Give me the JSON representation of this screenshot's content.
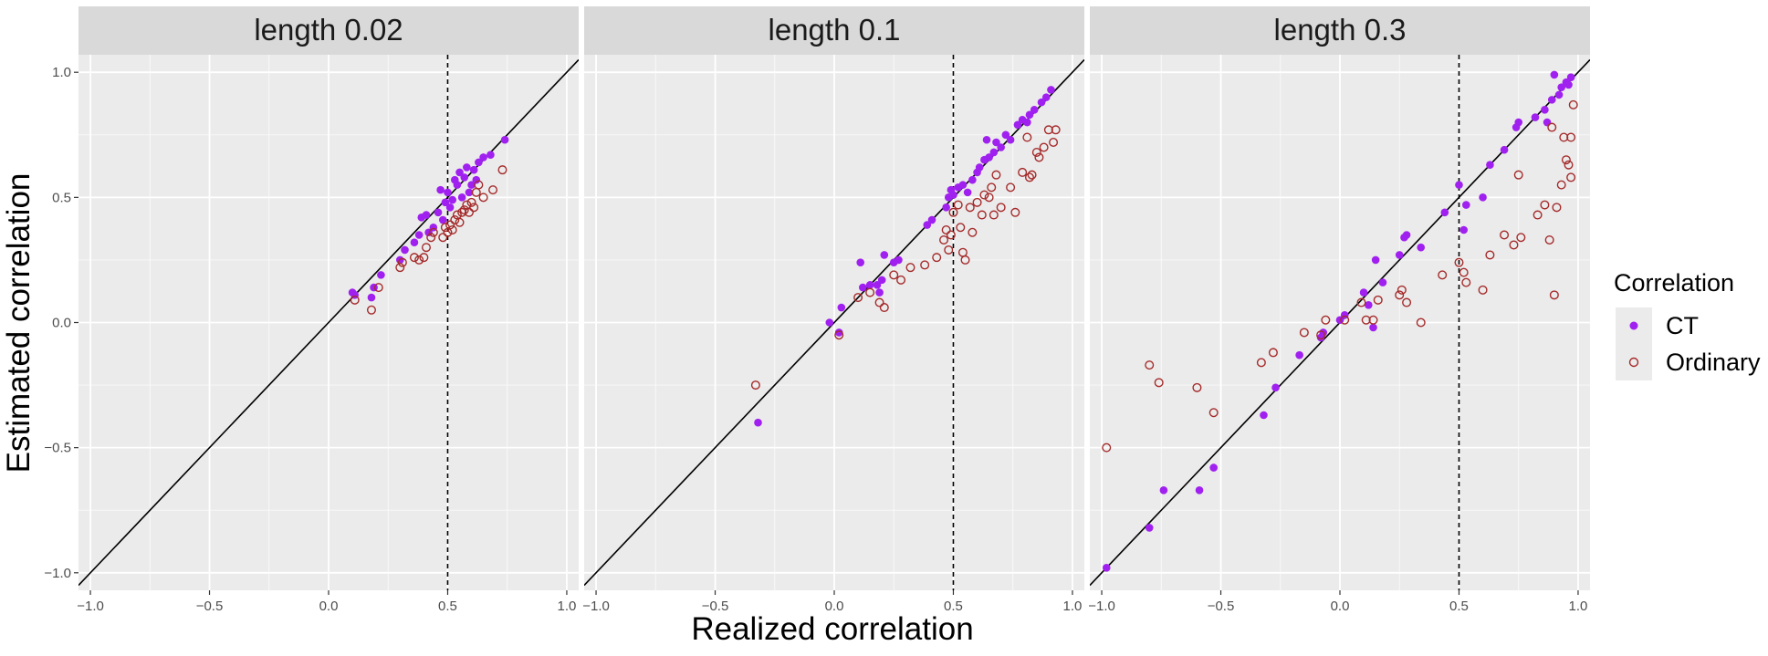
{
  "chart_data": {
    "type": "scatter",
    "xlabel": "Realized correlation",
    "ylabel": "Estimated  correlation",
    "xlim": [
      -1.05,
      1.05
    ],
    "ylim": [
      -1.07,
      1.07
    ],
    "x_ticks": [
      -1.0,
      -0.5,
      0.0,
      0.5,
      1.0
    ],
    "x_tick_labels": [
      "−1.0",
      "−0.5",
      "0.0",
      "0.5",
      "1.0"
    ],
    "y_ticks": [
      -1.0,
      -0.5,
      0.0,
      0.5,
      1.0
    ],
    "y_tick_labels": [
      "−1.0",
      "−0.5",
      "0.0",
      "0.5",
      "1.0"
    ],
    "reference_line": "y = x",
    "vline_x": 0.5,
    "legend": {
      "title": "Correlation",
      "placement": "right",
      "entries": [
        {
          "name": "CT",
          "color": "#a020f0",
          "shape": "filled-circle"
        },
        {
          "name": "Ordinary",
          "color": "#a52a2a",
          "shape": "open-circle"
        }
      ]
    },
    "panels": [
      {
        "title": "length 0.02",
        "series": [
          {
            "name": "CT",
            "points": [
              [
                0.1,
                0.12
              ],
              [
                0.11,
                0.11
              ],
              [
                0.18,
                0.1
              ],
              [
                0.19,
                0.14
              ],
              [
                0.22,
                0.19
              ],
              [
                0.3,
                0.25
              ],
              [
                0.32,
                0.29
              ],
              [
                0.36,
                0.32
              ],
              [
                0.38,
                0.35
              ],
              [
                0.39,
                0.42
              ],
              [
                0.41,
                0.43
              ],
              [
                0.42,
                0.36
              ],
              [
                0.44,
                0.38
              ],
              [
                0.46,
                0.44
              ],
              [
                0.47,
                0.53
              ],
              [
                0.48,
                0.41
              ],
              [
                0.49,
                0.48
              ],
              [
                0.5,
                0.52
              ],
              [
                0.51,
                0.46
              ],
              [
                0.52,
                0.49
              ],
              [
                0.53,
                0.57
              ],
              [
                0.54,
                0.55
              ],
              [
                0.55,
                0.6
              ],
              [
                0.56,
                0.5
              ],
              [
                0.57,
                0.58
              ],
              [
                0.58,
                0.62
              ],
              [
                0.59,
                0.52
              ],
              [
                0.6,
                0.55
              ],
              [
                0.61,
                0.61
              ],
              [
                0.62,
                0.57
              ],
              [
                0.63,
                0.64
              ],
              [
                0.65,
                0.66
              ],
              [
                0.68,
                0.67
              ],
              [
                0.74,
                0.73
              ]
            ]
          },
          {
            "name": "Ordinary",
            "points": [
              [
                0.11,
                0.09
              ],
              [
                0.18,
                0.05
              ],
              [
                0.21,
                0.14
              ],
              [
                0.3,
                0.22
              ],
              [
                0.31,
                0.24
              ],
              [
                0.36,
                0.26
              ],
              [
                0.38,
                0.25
              ],
              [
                0.4,
                0.26
              ],
              [
                0.41,
                0.3
              ],
              [
                0.43,
                0.34
              ],
              [
                0.44,
                0.36
              ],
              [
                0.48,
                0.34
              ],
              [
                0.49,
                0.38
              ],
              [
                0.5,
                0.36
              ],
              [
                0.51,
                0.39
              ],
              [
                0.52,
                0.37
              ],
              [
                0.53,
                0.41
              ],
              [
                0.54,
                0.43
              ],
              [
                0.55,
                0.4
              ],
              [
                0.56,
                0.44
              ],
              [
                0.57,
                0.45
              ],
              [
                0.58,
                0.47
              ],
              [
                0.59,
                0.44
              ],
              [
                0.6,
                0.48
              ],
              [
                0.61,
                0.46
              ],
              [
                0.62,
                0.52
              ],
              [
                0.63,
                0.55
              ],
              [
                0.65,
                0.5
              ],
              [
                0.69,
                0.53
              ],
              [
                0.73,
                0.61
              ]
            ]
          }
        ]
      },
      {
        "title": "length 0.1",
        "series": [
          {
            "name": "CT",
            "points": [
              [
                -0.32,
                -0.4
              ],
              [
                -0.02,
                0.0
              ],
              [
                0.02,
                -0.04
              ],
              [
                0.03,
                0.06
              ],
              [
                0.11,
                0.24
              ],
              [
                0.12,
                0.14
              ],
              [
                0.15,
                0.15
              ],
              [
                0.18,
                0.15
              ],
              [
                0.19,
                0.12
              ],
              [
                0.2,
                0.17
              ],
              [
                0.21,
                0.27
              ],
              [
                0.25,
                0.24
              ],
              [
                0.27,
                0.25
              ],
              [
                0.39,
                0.39
              ],
              [
                0.41,
                0.41
              ],
              [
                0.47,
                0.46
              ],
              [
                0.48,
                0.5
              ],
              [
                0.49,
                0.53
              ],
              [
                0.5,
                0.51
              ],
              [
                0.52,
                0.54
              ],
              [
                0.54,
                0.55
              ],
              [
                0.56,
                0.52
              ],
              [
                0.58,
                0.57
              ],
              [
                0.6,
                0.6
              ],
              [
                0.61,
                0.62
              ],
              [
                0.63,
                0.65
              ],
              [
                0.64,
                0.73
              ],
              [
                0.65,
                0.66
              ],
              [
                0.67,
                0.68
              ],
              [
                0.68,
                0.72
              ],
              [
                0.7,
                0.7
              ],
              [
                0.72,
                0.75
              ],
              [
                0.74,
                0.73
              ],
              [
                0.77,
                0.79
              ],
              [
                0.79,
                0.81
              ],
              [
                0.81,
                0.8
              ],
              [
                0.82,
                0.83
              ],
              [
                0.84,
                0.85
              ],
              [
                0.87,
                0.88
              ],
              [
                0.89,
                0.9
              ],
              [
                0.91,
                0.93
              ]
            ]
          },
          {
            "name": "Ordinary",
            "points": [
              [
                -0.33,
                -0.25
              ],
              [
                0.02,
                -0.05
              ],
              [
                0.1,
                0.1
              ],
              [
                0.15,
                0.12
              ],
              [
                0.19,
                0.08
              ],
              [
                0.21,
                0.06
              ],
              [
                0.25,
                0.19
              ],
              [
                0.28,
                0.17
              ],
              [
                0.32,
                0.22
              ],
              [
                0.38,
                0.23
              ],
              [
                0.43,
                0.26
              ],
              [
                0.46,
                0.33
              ],
              [
                0.47,
                0.37
              ],
              [
                0.48,
                0.29
              ],
              [
                0.49,
                0.35
              ],
              [
                0.5,
                0.44
              ],
              [
                0.52,
                0.47
              ],
              [
                0.53,
                0.38
              ],
              [
                0.54,
                0.28
              ],
              [
                0.55,
                0.25
              ],
              [
                0.57,
                0.46
              ],
              [
                0.58,
                0.36
              ],
              [
                0.6,
                0.48
              ],
              [
                0.62,
                0.43
              ],
              [
                0.63,
                0.51
              ],
              [
                0.65,
                0.5
              ],
              [
                0.66,
                0.54
              ],
              [
                0.67,
                0.43
              ],
              [
                0.68,
                0.59
              ],
              [
                0.7,
                0.46
              ],
              [
                0.74,
                0.54
              ],
              [
                0.76,
                0.44
              ],
              [
                0.79,
                0.6
              ],
              [
                0.81,
                0.74
              ],
              [
                0.82,
                0.58
              ],
              [
                0.83,
                0.59
              ],
              [
                0.85,
                0.68
              ],
              [
                0.86,
                0.66
              ],
              [
                0.88,
                0.7
              ],
              [
                0.9,
                0.77
              ],
              [
                0.92,
                0.72
              ],
              [
                0.93,
                0.77
              ]
            ]
          }
        ]
      },
      {
        "title": "length 0.3",
        "series": [
          {
            "name": "CT",
            "points": [
              [
                -0.98,
                -0.98
              ],
              [
                -0.8,
                -0.82
              ],
              [
                -0.74,
                -0.67
              ],
              [
                -0.59,
                -0.67
              ],
              [
                -0.53,
                -0.58
              ],
              [
                -0.32,
                -0.37
              ],
              [
                -0.27,
                -0.26
              ],
              [
                -0.17,
                -0.13
              ],
              [
                -0.08,
                -0.06
              ],
              [
                -0.07,
                -0.04
              ],
              [
                0.0,
                0.01
              ],
              [
                0.02,
                0.03
              ],
              [
                0.1,
                0.12
              ],
              [
                0.12,
                0.07
              ],
              [
                0.14,
                -0.02
              ],
              [
                0.15,
                0.25
              ],
              [
                0.18,
                0.16
              ],
              [
                0.25,
                0.27
              ],
              [
                0.27,
                0.34
              ],
              [
                0.28,
                0.35
              ],
              [
                0.34,
                0.3
              ],
              [
                0.44,
                0.44
              ],
              [
                0.5,
                0.55
              ],
              [
                0.52,
                0.37
              ],
              [
                0.53,
                0.47
              ],
              [
                0.6,
                0.5
              ],
              [
                0.63,
                0.63
              ],
              [
                0.69,
                0.69
              ],
              [
                0.74,
                0.78
              ],
              [
                0.75,
                0.8
              ],
              [
                0.82,
                0.82
              ],
              [
                0.86,
                0.85
              ],
              [
                0.87,
                0.8
              ],
              [
                0.89,
                0.89
              ],
              [
                0.9,
                0.99
              ],
              [
                0.92,
                0.91
              ],
              [
                0.93,
                0.94
              ],
              [
                0.95,
                0.96
              ],
              [
                0.96,
                0.95
              ],
              [
                0.97,
                0.98
              ]
            ]
          },
          {
            "name": "Ordinary",
            "points": [
              [
                -0.98,
                -0.5
              ],
              [
                -0.8,
                -0.17
              ],
              [
                -0.76,
                -0.24
              ],
              [
                -0.6,
                -0.26
              ],
              [
                -0.53,
                -0.36
              ],
              [
                -0.33,
                -0.16
              ],
              [
                -0.28,
                -0.12
              ],
              [
                -0.15,
                -0.04
              ],
              [
                -0.08,
                -0.05
              ],
              [
                -0.06,
                0.01
              ],
              [
                0.02,
                0.01
              ],
              [
                0.09,
                0.08
              ],
              [
                0.11,
                0.01
              ],
              [
                0.14,
                0.01
              ],
              [
                0.16,
                0.09
              ],
              [
                0.25,
                0.11
              ],
              [
                0.26,
                0.13
              ],
              [
                0.28,
                0.08
              ],
              [
                0.34,
                0.0
              ],
              [
                0.43,
                0.19
              ],
              [
                0.5,
                0.24
              ],
              [
                0.52,
                0.2
              ],
              [
                0.53,
                0.16
              ],
              [
                0.6,
                0.13
              ],
              [
                0.63,
                0.27
              ],
              [
                0.69,
                0.35
              ],
              [
                0.73,
                0.31
              ],
              [
                0.75,
                0.59
              ],
              [
                0.76,
                0.34
              ],
              [
                0.83,
                0.43
              ],
              [
                0.86,
                0.47
              ],
              [
                0.88,
                0.33
              ],
              [
                0.89,
                0.78
              ],
              [
                0.9,
                0.11
              ],
              [
                0.91,
                0.46
              ],
              [
                0.93,
                0.55
              ],
              [
                0.94,
                0.74
              ],
              [
                0.95,
                0.65
              ],
              [
                0.96,
                0.63
              ],
              [
                0.97,
                0.58
              ],
              [
                0.97,
                0.74
              ],
              [
                0.98,
                0.87
              ]
            ]
          }
        ]
      }
    ]
  }
}
